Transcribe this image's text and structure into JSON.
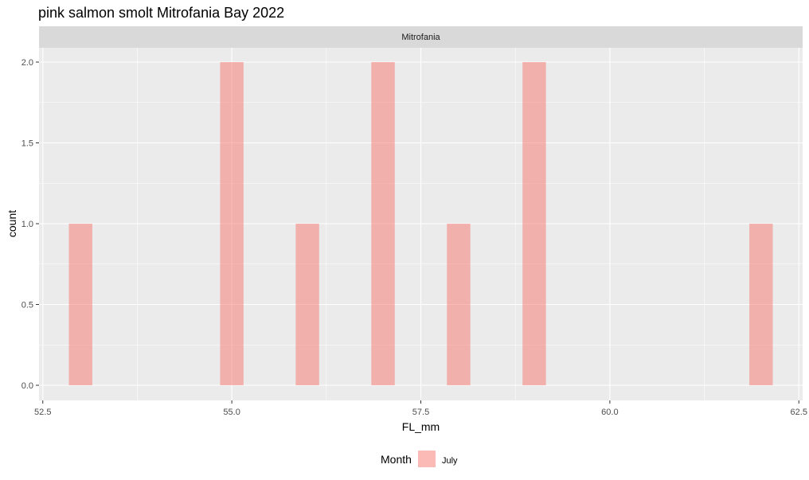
{
  "chart_data": {
    "type": "bar",
    "title": "pink salmon smolt Mitrofania Bay 2022",
    "facet_label": "Mitrofania",
    "xlabel": "FL_mm",
    "ylabel": "count",
    "xlim": [
      52.45,
      62.55
    ],
    "ylim": [
      0,
      2.0
    ],
    "x_ticks": [
      "52.5",
      "55.0",
      "57.5",
      "60.0",
      "62.5"
    ],
    "y_ticks": [
      "0.0",
      "0.5",
      "1.0",
      "1.5",
      "2.0"
    ],
    "bin_width": 0.31,
    "bars": [
      {
        "x": 53.0,
        "count": 1
      },
      {
        "x": 55.0,
        "count": 2
      },
      {
        "x": 56.0,
        "count": 1
      },
      {
        "x": 57.0,
        "count": 2
      },
      {
        "x": 58.0,
        "count": 1
      },
      {
        "x": 59.0,
        "count": 2
      },
      {
        "x": 62.0,
        "count": 1
      }
    ],
    "series": [
      {
        "name": "July",
        "color": "#F8766D",
        "alpha": 0.5
      }
    ],
    "legend": {
      "title": "Month",
      "position": "bottom"
    },
    "grid": true,
    "panel_background": "#EBEBEB",
    "strip_background": "#D9D9D9"
  }
}
